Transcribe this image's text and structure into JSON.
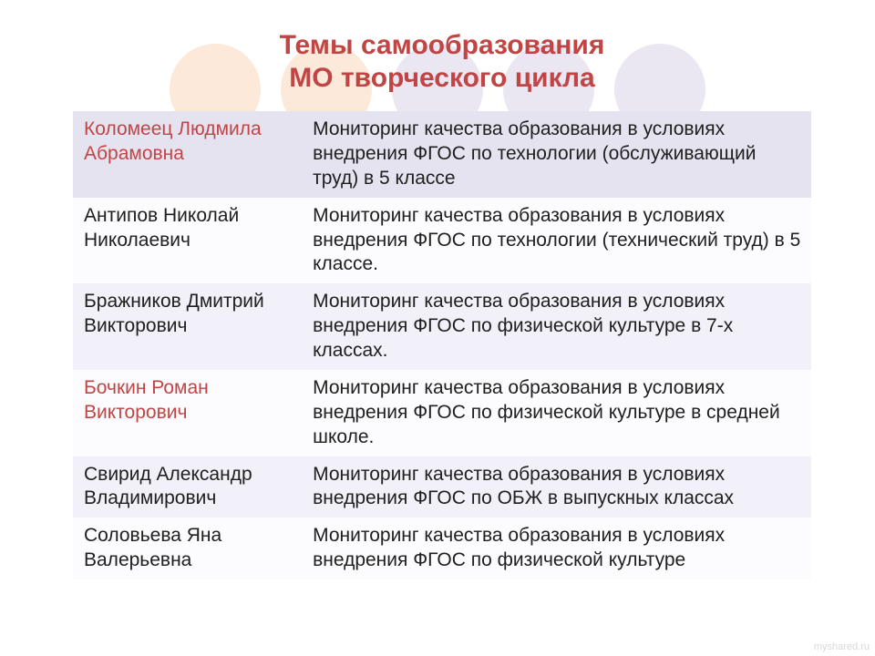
{
  "title": {
    "line1": "Темы самообразования",
    "line2": "МО творческого цикла",
    "color": "#c24545",
    "fontsize": 30
  },
  "circles": {
    "colors": [
      "#fde9d9",
      "#fde9d9",
      "#eae7f2",
      "#eae7f2",
      "#eae7f2"
    ]
  },
  "table": {
    "cell_fontsize": 21,
    "text_color": "#202020",
    "highlight_name_color": "#c24545",
    "row_bg": [
      "#e6e3f1",
      "#fcfbfd",
      "#f2f0f8",
      "#fcfbfd",
      "#f2f0f8",
      "#fcfbfd"
    ],
    "rows": [
      {
        "name": "Коломеец Людмила Абрамовна",
        "highlight": true,
        "topic": "Мониторинг качества образования в условиях внедрения ФГОС по технологии (обслуживающий труд) в 5 классе"
      },
      {
        "name": "Антипов Николай Николаевич",
        "highlight": false,
        "topic": "Мониторинг качества образования в условиях внедрения ФГОС по технологии (технический труд) в 5 классе."
      },
      {
        "name": "Бражников Дмитрий Викторович",
        "highlight": false,
        "topic": "Мониторинг качества образования в условиях внедрения ФГОС по физической культуре в 7-х классах."
      },
      {
        "name": "Бочкин Роман Викторович",
        "highlight": true,
        "topic": "Мониторинг качества образования в условиях внедрения ФГОС по физической культуре в средней школе."
      },
      {
        "name": "Свирид Александр Владимирович",
        "highlight": false,
        "topic": "Мониторинг качества образования в условиях внедрения ФГОС по ОБЖ в выпускных классах"
      },
      {
        "name": "Соловьева Яна Валерьевна",
        "highlight": false,
        "topic": "Мониторинг качества образования в условиях внедрения ФГОС по физической культуре"
      }
    ]
  },
  "watermark": "myshared.ru"
}
